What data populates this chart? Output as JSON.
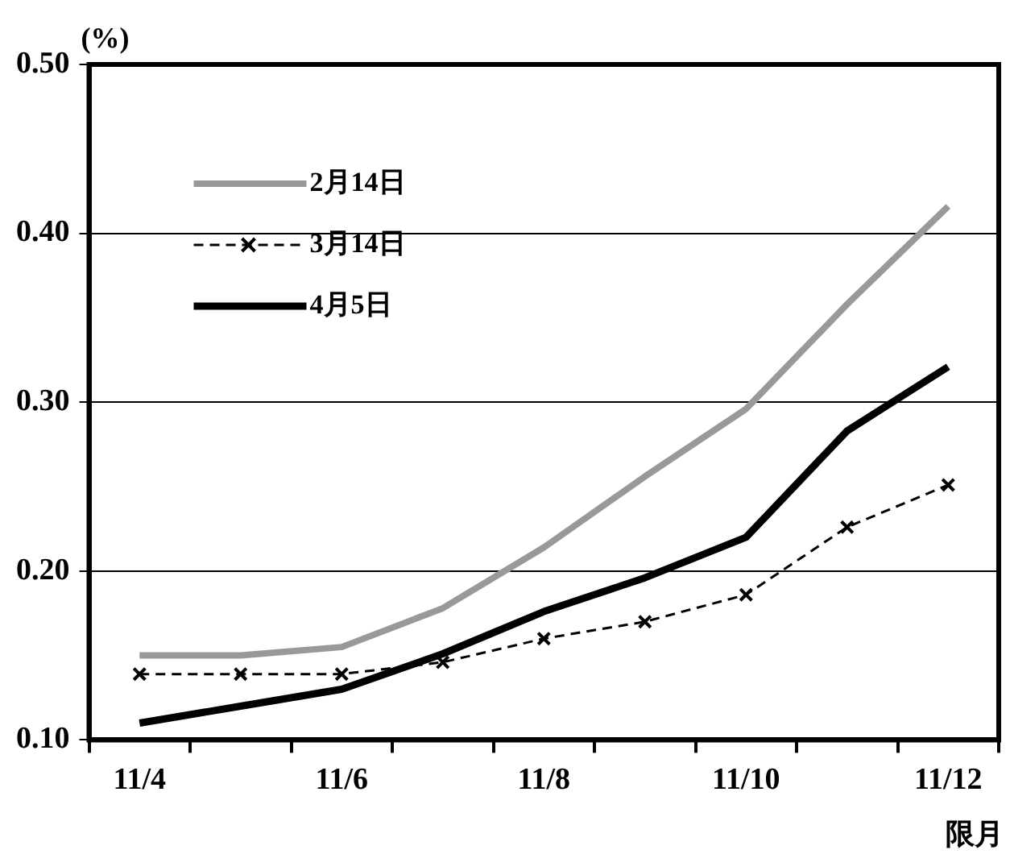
{
  "chart_data": {
    "type": "line",
    "ylabel": "(%)",
    "xlabel": "限月",
    "categories": [
      "11/4",
      null,
      "11/6",
      null,
      "11/8",
      null,
      "11/10",
      null,
      "11/12"
    ],
    "series": [
      {
        "name": "2月14日",
        "color": "#999999",
        "marker": "none",
        "line_style": "solid",
        "values": [
          0.15,
          0.15,
          0.155,
          0.178,
          0.214,
          0.256,
          0.296,
          0.358,
          0.416
        ]
      },
      {
        "name": "3月14日",
        "color": "#000000",
        "marker": "cross",
        "line_style": "dashed",
        "values": [
          0.139,
          0.139,
          0.139,
          0.146,
          0.16,
          0.17,
          0.186,
          0.226,
          0.251
        ]
      },
      {
        "name": "4月5日",
        "color": "#000000",
        "marker": "none",
        "line_style": "solid",
        "values": [
          0.11,
          0.12,
          0.13,
          0.151,
          0.176,
          0.196,
          0.22,
          0.283,
          0.321
        ]
      }
    ],
    "ylim": [
      0.1,
      0.5
    ],
    "yticks": [
      {
        "value": 0.1,
        "label": "0.10"
      },
      {
        "value": 0.2,
        "label": "0.20"
      },
      {
        "value": 0.3,
        "label": "0.30"
      },
      {
        "value": 0.4,
        "label": "0.40"
      },
      {
        "value": 0.5,
        "label": "0.50"
      }
    ],
    "grid": "y",
    "legend": "top left"
  }
}
